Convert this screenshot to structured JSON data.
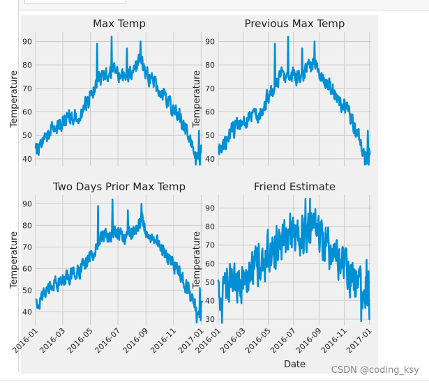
{
  "watermark": "CSDN @coding_ksy",
  "colors": {
    "line": "#008fd5",
    "panel_bg": "#f0f0f0",
    "grid": "#cbcbcb",
    "text": "#222222"
  },
  "shared_x_ticks": [
    "2016-01",
    "2016-03",
    "2016-05",
    "2016-07",
    "2016-09",
    "2016-11",
    "2017-01"
  ],
  "chart_data": [
    {
      "type": "line",
      "title": "Max Temp",
      "xlabel": "",
      "ylabel": "Temperature",
      "ylim": [
        37,
        94
      ],
      "y_ticks": [
        40,
        50,
        60,
        70,
        80,
        90
      ],
      "x_range": [
        "2016-01-01",
        "2017-01-05"
      ],
      "show_x_tick_labels": false,
      "grid": true,
      "noise": 5,
      "keypoints": [
        [
          "2016-01-01",
          44
        ],
        [
          "2016-01-15",
          47
        ],
        [
          "2016-02-01",
          52
        ],
        [
          "2016-02-20",
          54
        ],
        [
          "2016-03-15",
          57
        ],
        [
          "2016-04-10",
          60
        ],
        [
          "2016-05-01",
          66
        ],
        [
          "2016-05-20",
          74
        ],
        [
          "2016-06-15",
          77
        ],
        [
          "2016-07-10",
          75
        ],
        [
          "2016-08-01",
          77
        ],
        [
          "2016-08-20",
          82
        ],
        [
          "2016-09-10",
          74
        ],
        [
          "2016-10-01",
          70
        ],
        [
          "2016-10-20",
          64
        ],
        [
          "2016-11-10",
          60
        ],
        [
          "2016-12-01",
          50
        ],
        [
          "2016-12-15",
          44
        ],
        [
          "2016-12-25",
          40
        ],
        [
          "2017-01-01",
          44
        ]
      ],
      "peaks": [
        [
          "2016-05-16",
          89
        ],
        [
          "2016-06-17",
          92
        ],
        [
          "2016-07-21",
          87
        ],
        [
          "2016-08-20",
          90
        ],
        [
          "2016-12-20",
          35
        ],
        [
          "2016-12-27",
          52
        ],
        [
          "2016-12-29",
          36
        ],
        [
          "2017-01-02",
          57
        ]
      ]
    },
    {
      "type": "line",
      "title": "Previous Max Temp",
      "xlabel": "",
      "ylabel": "Temperature",
      "ylim": [
        37,
        94
      ],
      "y_ticks": [
        40,
        50,
        60,
        70,
        80,
        90
      ],
      "x_range": [
        "2016-01-01",
        "2017-01-05"
      ],
      "show_x_tick_labels": false,
      "grid": true,
      "noise": 5,
      "keypoints": [
        [
          "2016-01-02",
          44
        ],
        [
          "2016-01-16",
          47
        ],
        [
          "2016-02-02",
          52
        ],
        [
          "2016-02-21",
          54
        ],
        [
          "2016-03-16",
          57
        ],
        [
          "2016-04-11",
          60
        ],
        [
          "2016-05-02",
          66
        ],
        [
          "2016-05-21",
          74
        ],
        [
          "2016-06-16",
          77
        ],
        [
          "2016-07-11",
          75
        ],
        [
          "2016-08-02",
          77
        ],
        [
          "2016-08-21",
          82
        ],
        [
          "2016-09-11",
          74
        ],
        [
          "2016-10-02",
          70
        ],
        [
          "2016-10-21",
          64
        ],
        [
          "2016-11-11",
          60
        ],
        [
          "2016-12-02",
          50
        ],
        [
          "2016-12-16",
          44
        ],
        [
          "2016-12-26",
          40
        ],
        [
          "2017-01-02",
          44
        ]
      ],
      "peaks": [
        [
          "2016-05-17",
          89
        ],
        [
          "2016-06-18",
          92
        ],
        [
          "2016-07-22",
          87
        ],
        [
          "2016-08-21",
          90
        ],
        [
          "2016-12-21",
          35
        ],
        [
          "2016-12-28",
          52
        ],
        [
          "2016-12-30",
          36
        ],
        [
          "2017-01-03",
          57
        ]
      ]
    },
    {
      "type": "line",
      "title": "Two Days Prior Max Temp",
      "xlabel": "",
      "ylabel": "Temperature",
      "ylim": [
        34,
        94
      ],
      "y_ticks": [
        40,
        50,
        60,
        70,
        80,
        90
      ],
      "x_range": [
        "2016-01-01",
        "2017-01-05"
      ],
      "show_x_tick_labels": true,
      "grid": true,
      "noise": 5,
      "keypoints": [
        [
          "2016-01-03",
          44
        ],
        [
          "2016-01-17",
          47
        ],
        [
          "2016-02-03",
          52
        ],
        [
          "2016-02-22",
          54
        ],
        [
          "2016-03-17",
          57
        ],
        [
          "2016-04-12",
          60
        ],
        [
          "2016-05-03",
          66
        ],
        [
          "2016-05-22",
          74
        ],
        [
          "2016-06-17",
          77
        ],
        [
          "2016-07-12",
          75
        ],
        [
          "2016-08-03",
          77
        ],
        [
          "2016-08-22",
          82
        ],
        [
          "2016-09-12",
          74
        ],
        [
          "2016-10-03",
          70
        ],
        [
          "2016-10-22",
          64
        ],
        [
          "2016-11-12",
          60
        ],
        [
          "2016-12-03",
          50
        ],
        [
          "2016-12-17",
          44
        ],
        [
          "2016-12-27",
          40
        ],
        [
          "2017-01-03",
          44
        ]
      ],
      "peaks": [
        [
          "2016-05-18",
          89
        ],
        [
          "2016-06-19",
          92
        ],
        [
          "2016-07-23",
          87
        ],
        [
          "2016-08-22",
          90
        ],
        [
          "2016-12-22",
          35
        ],
        [
          "2016-12-29",
          51
        ],
        [
          "2016-12-31",
          36
        ],
        [
          "2017-01-04",
          48
        ]
      ]
    },
    {
      "type": "line",
      "title": "Friend Estimate",
      "xlabel": "Date",
      "ylabel": "Temperature",
      "ylim": [
        27,
        97
      ],
      "y_ticks": [
        30,
        40,
        50,
        60,
        70,
        80,
        90
      ],
      "x_range": [
        "2016-01-01",
        "2017-01-05"
      ],
      "show_x_tick_labels": true,
      "grid": true,
      "noise": 16,
      "keypoints": [
        [
          "2016-01-01",
          44
        ],
        [
          "2016-02-01",
          48
        ],
        [
          "2016-03-01",
          52
        ],
        [
          "2016-04-01",
          58
        ],
        [
          "2016-05-01",
          64
        ],
        [
          "2016-06-01",
          72
        ],
        [
          "2016-07-01",
          76
        ],
        [
          "2016-08-01",
          78
        ],
        [
          "2016-08-20",
          80
        ],
        [
          "2016-09-10",
          72
        ],
        [
          "2016-10-01",
          66
        ],
        [
          "2016-11-01",
          58
        ],
        [
          "2016-12-01",
          48
        ],
        [
          "2017-01-01",
          46
        ]
      ],
      "peaks": [
        [
          "2016-01-10",
          28
        ],
        [
          "2016-07-30",
          95
        ],
        [
          "2016-08-10",
          95
        ],
        [
          "2016-12-12",
          29
        ],
        [
          "2016-12-25",
          62
        ],
        [
          "2017-01-01",
          30
        ],
        [
          "2017-01-03",
          65
        ]
      ]
    }
  ]
}
